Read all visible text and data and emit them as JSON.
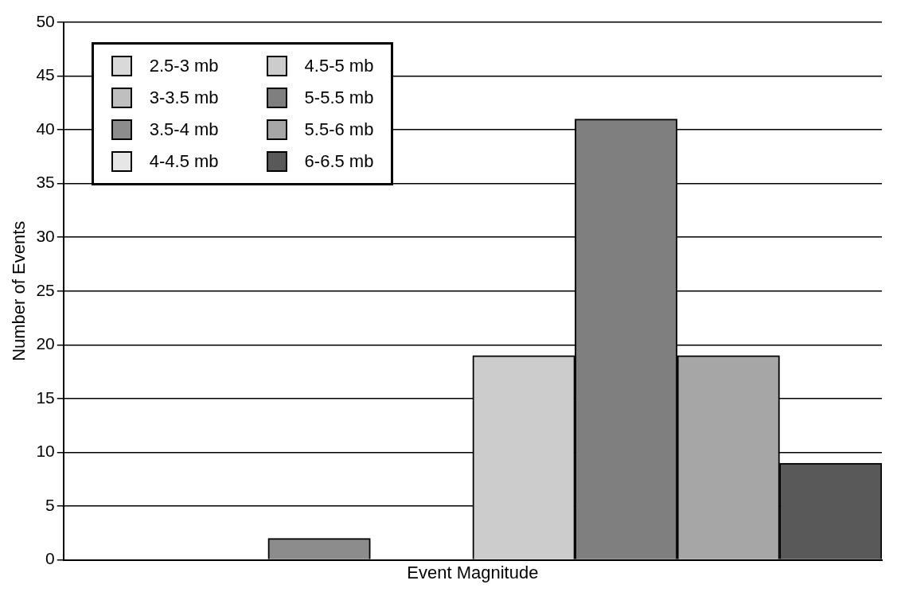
{
  "chart_data": {
    "type": "bar",
    "xlabel": "Event Magnitude",
    "ylabel": "Number of Events",
    "categories": [
      null,
      null,
      null,
      null,
      null,
      null,
      null,
      null
    ],
    "series": [
      {
        "name": "2.5-3 mb",
        "color": "#d9d9d9",
        "values": [
          0,
          null,
          null,
          null,
          null,
          null,
          null,
          null
        ]
      },
      {
        "name": "3-3.5 mb",
        "color": "#bfbfbf",
        "values": [
          null,
          0,
          null,
          null,
          null,
          null,
          null,
          null
        ]
      },
      {
        "name": "3.5-4 mb",
        "color": "#8c8c8c",
        "values": [
          null,
          null,
          2,
          null,
          null,
          null,
          null,
          null
        ]
      },
      {
        "name": "4-4.5 mb",
        "color": "#e6e6e6",
        "values": [
          null,
          null,
          null,
          0,
          null,
          null,
          null,
          null
        ]
      },
      {
        "name": "4.5-5 mb",
        "color": "#cccccc",
        "values": [
          null,
          null,
          null,
          null,
          19,
          null,
          null,
          null
        ]
      },
      {
        "name": "5-5.5 mb",
        "color": "#7f7f7f",
        "values": [
          null,
          null,
          null,
          null,
          null,
          41,
          null,
          null
        ]
      },
      {
        "name": "5.5-6 mb",
        "color": "#a6a6a6",
        "values": [
          null,
          null,
          null,
          null,
          null,
          null,
          19,
          null
        ]
      },
      {
        "name": "6-6.5 mb",
        "color": "#595959",
        "values": [
          null,
          null,
          null,
          null,
          null,
          null,
          null,
          9
        ]
      }
    ],
    "ylim": [
      0,
      50
    ],
    "yticks": [
      0,
      5,
      10,
      15,
      20,
      25,
      30,
      35,
      40,
      45,
      50
    ],
    "grid": "y",
    "legend": "top left"
  }
}
